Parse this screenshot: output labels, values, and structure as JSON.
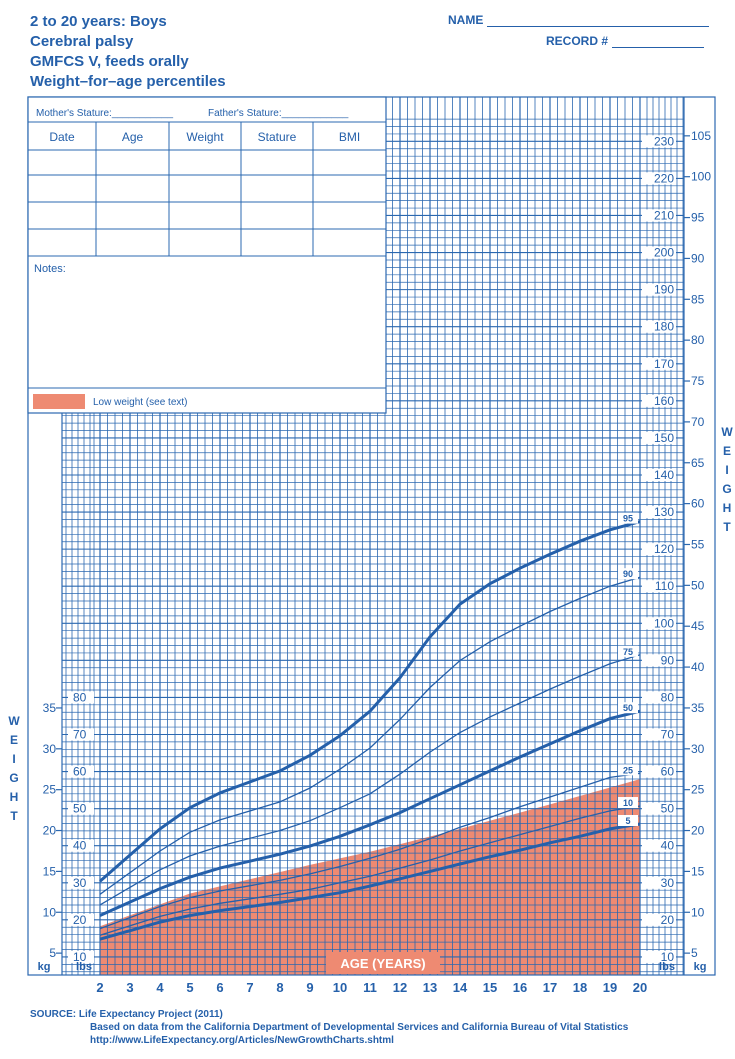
{
  "header": {
    "title_line1": "2 to 20 years: Boys",
    "title_line2": "Cerebral palsy",
    "title_line3": "GMFCS V, feeds orally",
    "title_line4": "Weight–for–age percentiles",
    "name_label": "NAME",
    "record_label": "RECORD #"
  },
  "info_table": {
    "mother_label": "Mother's Stature:",
    "father_label": "Father's Stature:",
    "columns": [
      "Date",
      "Age",
      "Weight",
      "Stature",
      "BMI"
    ],
    "notes_label": "Notes:",
    "legend_label": "Low weight (see text)"
  },
  "axis": {
    "x_label": "AGE (YEARS)",
    "x_ticks": [
      "2",
      "3",
      "4",
      "5",
      "6",
      "7",
      "8",
      "9",
      "10",
      "11",
      "12",
      "13",
      "14",
      "15",
      "16",
      "17",
      "18",
      "19",
      "20"
    ],
    "kg_unit": "kg",
    "lbs_unit": "lbs",
    "weight_letters": [
      "W",
      "E",
      "I",
      "G",
      "H",
      "T"
    ],
    "right_lbs_ticks": [
      "10",
      "20",
      "30",
      "40",
      "50",
      "60",
      "70",
      "80",
      "90",
      "100",
      "110",
      "120",
      "130",
      "140",
      "150",
      "160",
      "170",
      "180",
      "190",
      "200",
      "210",
      "220",
      "230"
    ],
    "right_kg_ticks": [
      "5",
      "10",
      "15",
      "20",
      "25",
      "30",
      "35",
      "40",
      "45",
      "50",
      "55",
      "60",
      "65",
      "70",
      "75",
      "80",
      "85",
      "90",
      "95",
      "100",
      "105"
    ],
    "left_lbs_ticks": [
      "10",
      "20",
      "30",
      "40",
      "50",
      "60",
      "70",
      "80"
    ],
    "left_kg_ticks": [
      "5",
      "10",
      "15",
      "20",
      "25",
      "30",
      "35"
    ]
  },
  "colors": {
    "grid": "#2b68b0",
    "line": "#2560aa",
    "low_weight_fill": "#ee8a72"
  },
  "chart_data": {
    "type": "line",
    "title": "Weight–for–age percentiles",
    "xlabel": "AGE (YEARS)",
    "ylabel": "WEIGHT",
    "xlim": [
      2,
      20
    ],
    "ylim_kg": [
      2.5,
      107
    ],
    "x": [
      2,
      4,
      5,
      6,
      8,
      9,
      10,
      11,
      12,
      13,
      14,
      15,
      16,
      17,
      18,
      19,
      20
    ],
    "series": [
      {
        "name": "95",
        "values": [
          13.8,
          20.2,
          22.8,
          24.6,
          27.3,
          29.2,
          31.6,
          34.6,
          38.7,
          43.7,
          47.7,
          50.2,
          52.1,
          53.8,
          55.4,
          56.8,
          57.8
        ]
      },
      {
        "name": "90",
        "values": [
          12.2,
          17.5,
          19.8,
          21.3,
          23.5,
          25.2,
          27.5,
          30.1,
          33.6,
          37.5,
          40.8,
          43.1,
          45.0,
          46.8,
          48.4,
          49.9,
          51.0
        ]
      },
      {
        "name": "75",
        "values": [
          10.9,
          15.2,
          16.9,
          18.1,
          20.0,
          21.2,
          22.8,
          24.5,
          26.9,
          29.6,
          32.0,
          33.9,
          35.6,
          37.3,
          38.9,
          40.4,
          41.5
        ]
      },
      {
        "name": "50",
        "values": [
          9.6,
          12.9,
          14.3,
          15.4,
          17.1,
          18.1,
          19.3,
          20.7,
          22.2,
          23.9,
          25.6,
          27.3,
          29.0,
          30.6,
          32.2,
          33.7,
          34.6
        ]
      },
      {
        "name": "25",
        "values": [
          8.0,
          10.7,
          11.8,
          12.6,
          13.9,
          14.7,
          15.6,
          16.6,
          17.7,
          19.0,
          20.4,
          21.6,
          22.9,
          24.1,
          25.3,
          26.5,
          27.0
        ]
      },
      {
        "name": "10",
        "values": [
          7.2,
          9.5,
          10.4,
          11.1,
          12.2,
          12.8,
          13.6,
          14.4,
          15.4,
          16.4,
          17.5,
          18.5,
          19.5,
          20.5,
          21.5,
          22.4,
          23.0
        ]
      },
      {
        "name": "5",
        "values": [
          6.7,
          8.8,
          9.6,
          10.2,
          11.2,
          11.8,
          12.4,
          13.2,
          14.1,
          15.0,
          15.9,
          16.8,
          17.6,
          18.5,
          19.3,
          20.2,
          20.8
        ]
      }
    ],
    "low_weight_region": {
      "x": [
        2,
        5,
        9,
        11,
        14,
        17,
        20
      ],
      "upper_kg": [
        8.3,
        12.3,
        15.8,
        17.4,
        20.2,
        23.2,
        26.3
      ]
    },
    "bold_series": [
      "95",
      "50",
      "5"
    ],
    "source": [
      "SOURCE:  Life Expectancy Project (2011)",
      "Based on data from the California Department of Developmental Services and California Bureau of Vital Statistics",
      "http://www.LifeExpectancy.org/Articles/NewGrowthCharts.shtml"
    ]
  }
}
